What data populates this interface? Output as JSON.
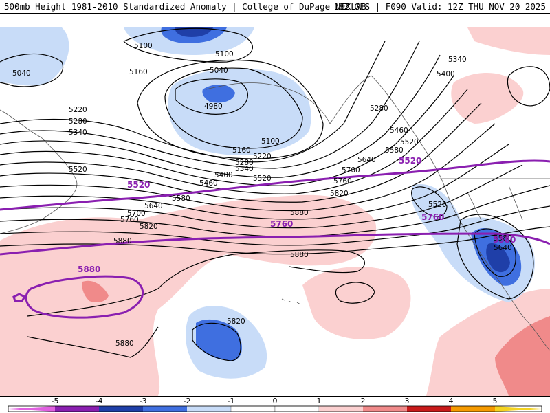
{
  "header": {
    "title": "500mb Height 1981-2010 Standardized Anomaly | College of DuPage NEXLAB",
    "valid": "18Z GFS | F090 Valid: 12Z THU NOV 20 2025"
  },
  "colors": {
    "neg5": "#e060e0",
    "neg4": "#8a1fb0",
    "neg3": "#1f3fa8",
    "neg2": "#3f6fe0",
    "neg1": "#c8dcf8",
    "zero": "#ffffff",
    "pos1": "#fbd0d0",
    "pos2": "#f08a8a",
    "pos3": "#c81a1a",
    "pos4": "#f59a00",
    "pos5": "#f4d320",
    "purple": "#8a1fb0"
  },
  "contours": {
    "labels": [
      "5040",
      "5100",
      "5160",
      "5100",
      "5040",
      "4980",
      "5220",
      "5280",
      "5340",
      "5520",
      "5160",
      "5220",
      "5100",
      "5280",
      "5340",
      "5400",
      "5460",
      "5520",
      "5580",
      "5640",
      "5700",
      "5760",
      "5820",
      "5880",
      "5400",
      "5340",
      "5280",
      "5460",
      "5520",
      "5580",
      "5640",
      "5700",
      "5760",
      "5820",
      "5880",
      "5880",
      "5820",
      "5520",
      "5580",
      "5640",
      "5880"
    ],
    "highlight": [
      "5520",
      "5760",
      "5880",
      "5520",
      "5760",
      "5580"
    ]
  },
  "colorbar": {
    "ticks": [
      "-5",
      "-4",
      "-3",
      "-2",
      "-1",
      "0",
      "1",
      "2",
      "3",
      "4",
      "5"
    ]
  }
}
